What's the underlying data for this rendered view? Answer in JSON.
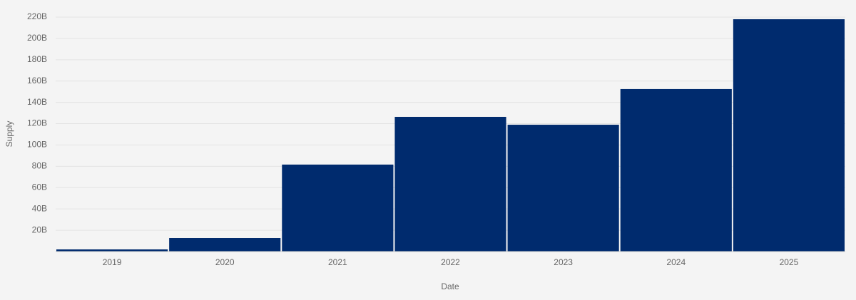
{
  "chart_data": {
    "type": "bar",
    "y_label": "Supply",
    "x_label": "Date",
    "categories": [
      "2019",
      "2020",
      "2021",
      "2022",
      "2023",
      "2024",
      "2025"
    ],
    "values": [
      2000000000,
      12700000000,
      81600000000,
      126400000000,
      119000000000,
      152500000000,
      218000000000
    ],
    "color": "#002b6e",
    "ylim": [
      0,
      220000000000
    ],
    "yticks": [
      {
        "value": 20000000000,
        "label": "20B"
      },
      {
        "value": 40000000000,
        "label": "40B"
      },
      {
        "value": 60000000000,
        "label": "60B"
      },
      {
        "value": 80000000000,
        "label": "80B"
      },
      {
        "value": 100000000000,
        "label": "100B"
      },
      {
        "value": 120000000000,
        "label": "120B"
      },
      {
        "value": 140000000000,
        "label": "140B"
      },
      {
        "value": 160000000000,
        "label": "160B"
      },
      {
        "value": 180000000000,
        "label": "180B"
      },
      {
        "value": 200000000000,
        "label": "200B"
      },
      {
        "value": 220000000000,
        "label": "220B"
      }
    ],
    "grid": true
  }
}
